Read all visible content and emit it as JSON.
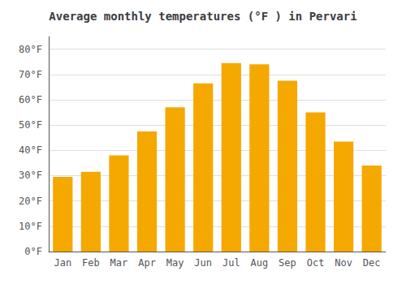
{
  "chart_data": {
    "type": "bar",
    "title": "Average monthly temperatures (°F ) in Pervari",
    "categories": [
      "Jan",
      "Feb",
      "Mar",
      "Apr",
      "May",
      "Jun",
      "Jul",
      "Aug",
      "Sep",
      "Oct",
      "Nov",
      "Dec"
    ],
    "values": [
      29.5,
      31.5,
      38.0,
      47.5,
      57.0,
      66.5,
      74.5,
      74.0,
      67.5,
      55.0,
      43.5,
      34.0
    ],
    "color": "#F5A800",
    "ylim": [
      0,
      85
    ],
    "yticks": [
      {
        "value": 0,
        "label": "0°F"
      },
      {
        "value": 10,
        "label": "10°F"
      },
      {
        "value": 20,
        "label": "20°F"
      },
      {
        "value": 30,
        "label": "30°F"
      },
      {
        "value": 40,
        "label": "40°F"
      },
      {
        "value": 50,
        "label": "50°F"
      },
      {
        "value": 60,
        "label": "60°F"
      },
      {
        "value": 70,
        "label": "70°F"
      },
      {
        "value": 80,
        "label": "80°F"
      }
    ],
    "grid": true
  }
}
